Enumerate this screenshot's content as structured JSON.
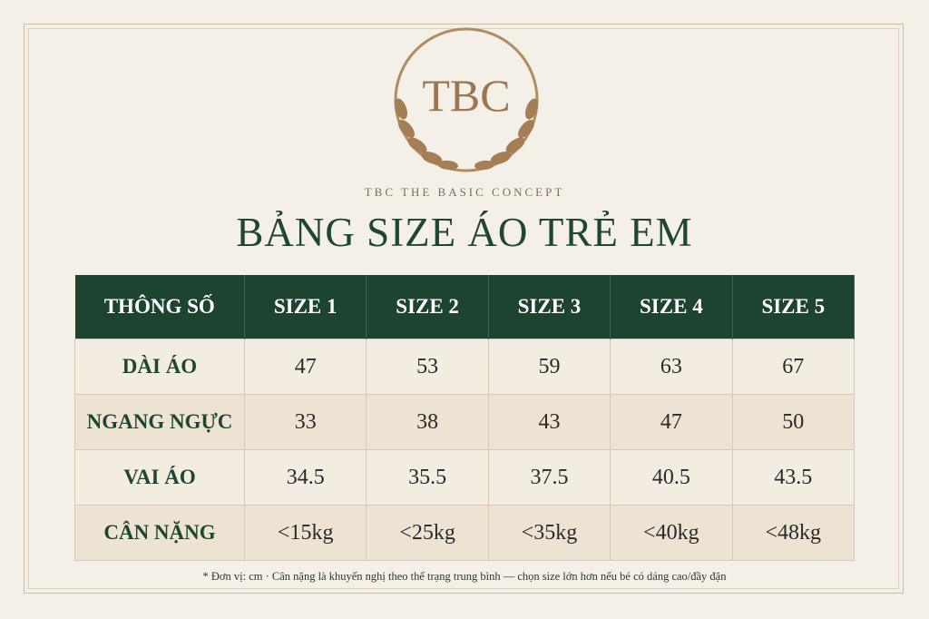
{
  "logo": {
    "text": "TBC",
    "tagline": "TBC THE BASIC CONCEPT"
  },
  "title": "BẢNG SIZE ÁO TRẺ EM",
  "table": {
    "header": [
      "THÔNG SỐ",
      "SIZE 1",
      "SIZE 2",
      "SIZE 3",
      "SIZE 4",
      "SIZE 5"
    ],
    "rows": [
      [
        "DÀI ÁO",
        "47",
        "53",
        "59",
        "63",
        "67"
      ],
      [
        "NGANG NGỰC",
        "33",
        "38",
        "43",
        "47",
        "50"
      ],
      [
        "VAI ÁO",
        "34.5",
        "35.5",
        "37.5",
        "40.5",
        "43.5"
      ],
      [
        "CÂN NẶNG",
        "<15kg",
        "<25kg",
        "<35kg",
        "<40kg",
        "<48kg"
      ]
    ]
  },
  "footnote": "* Đơn vị: cm · Cân nặng là khuyến nghị theo thể trạng trung bình — chọn size lớn hơn nếu bé có dáng cao/đầy đặn"
}
